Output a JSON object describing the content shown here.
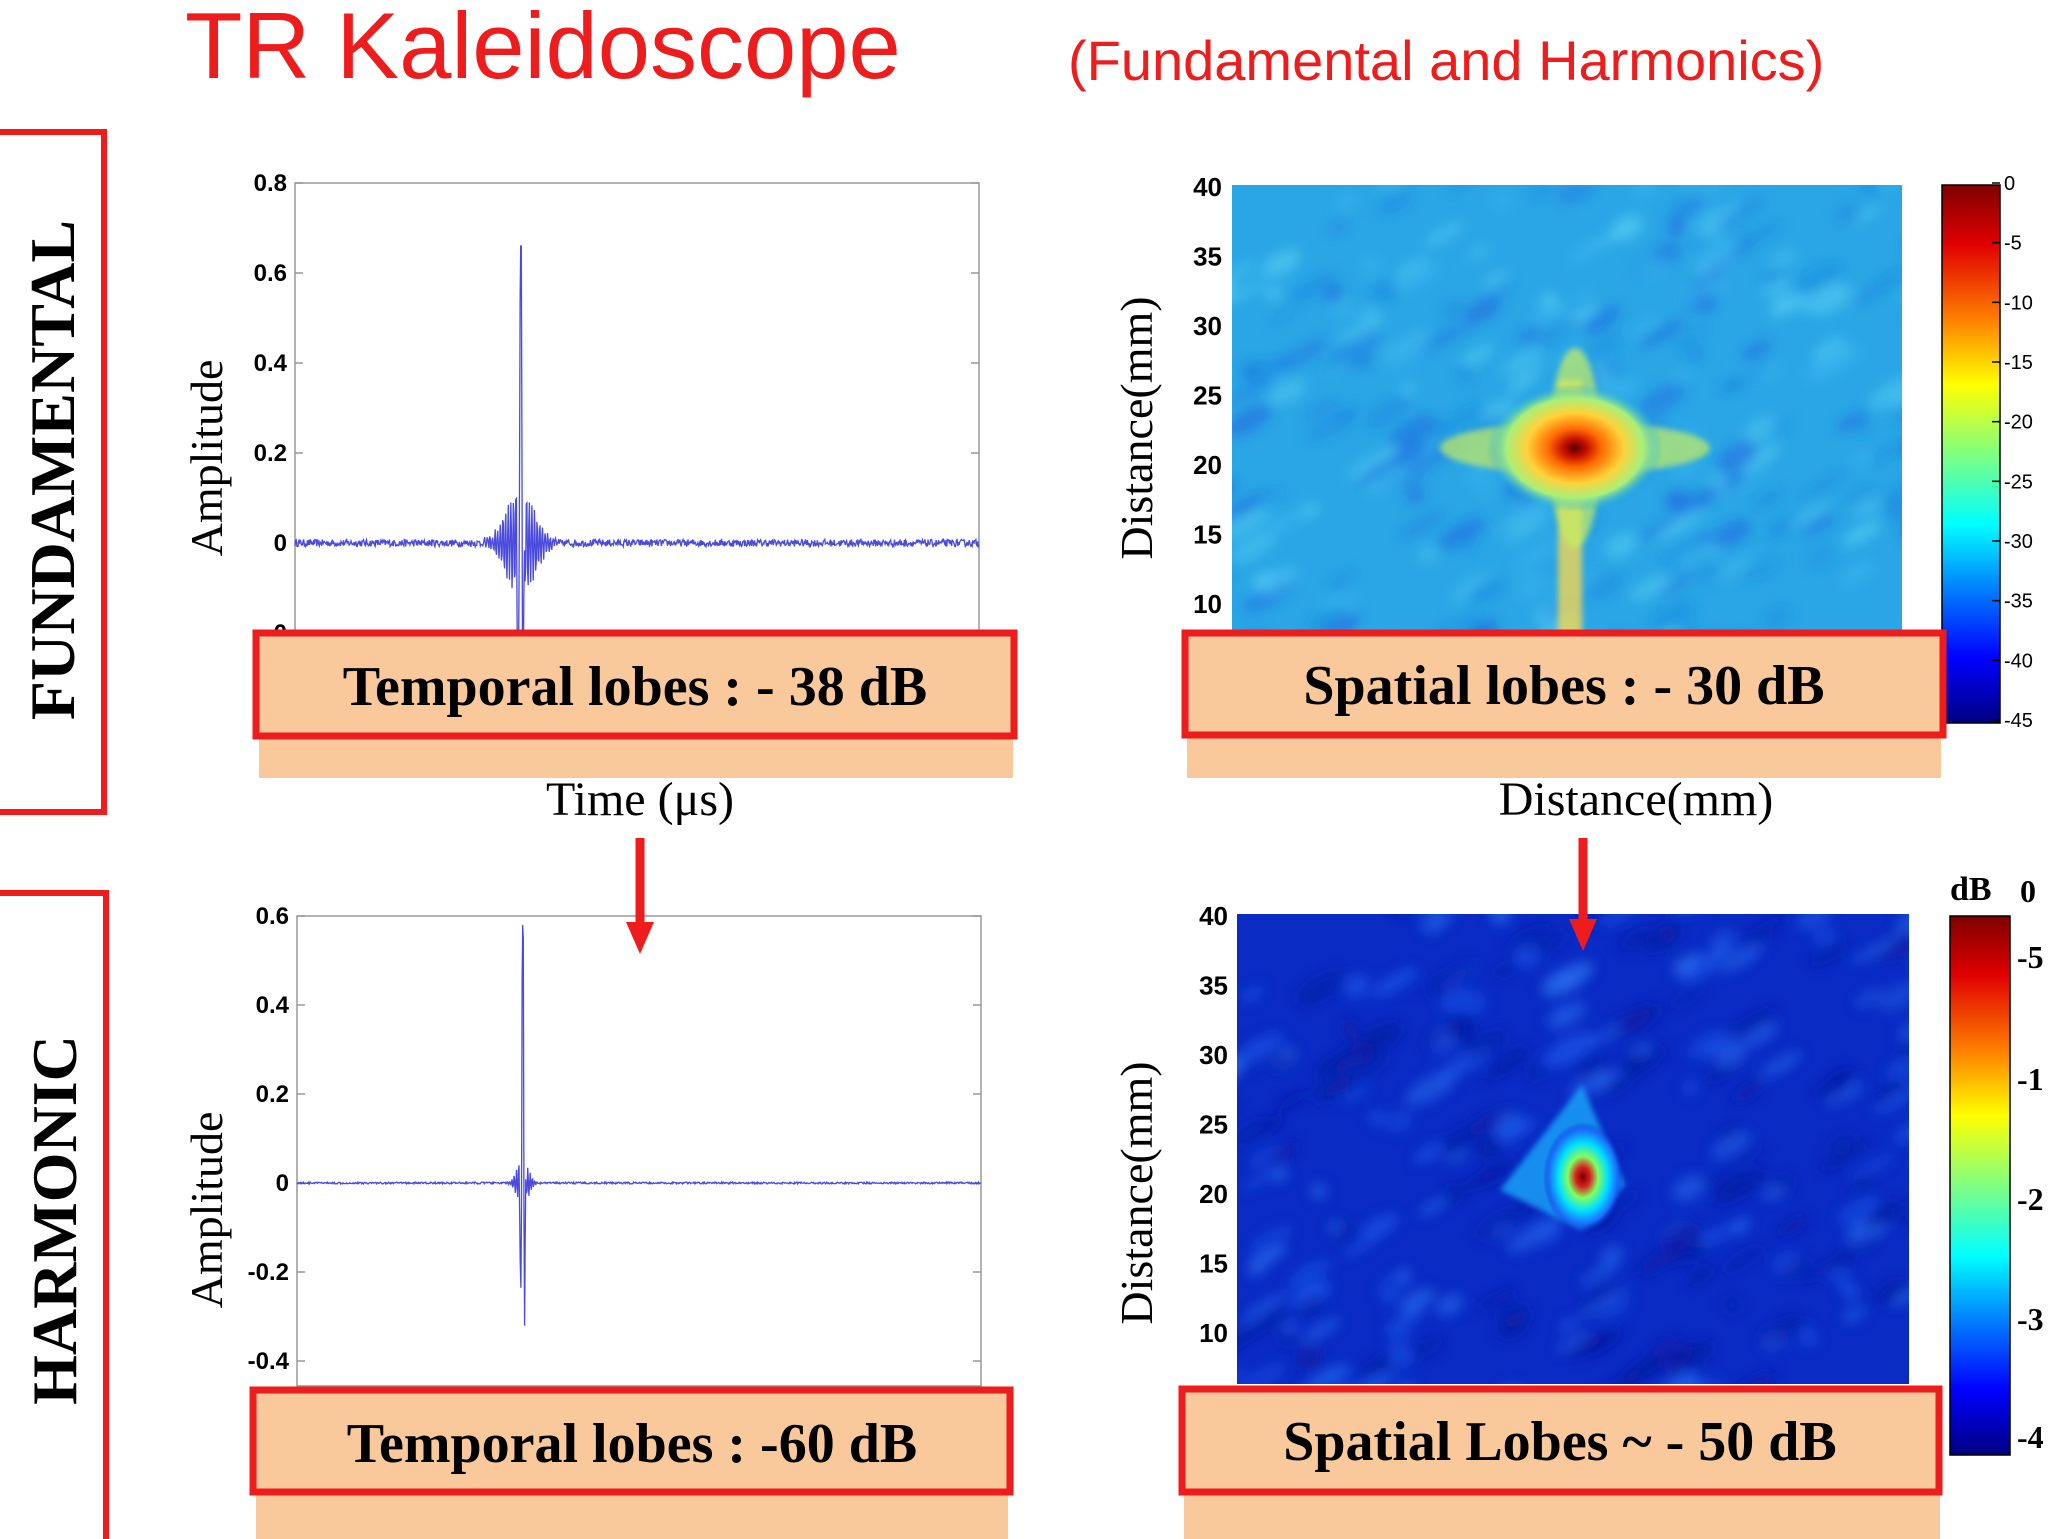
{
  "title": "TR Kaleidoscope",
  "subtitle": "(Fundamental and Harmonics)",
  "colors": {
    "accent": "#ee1c1c",
    "callout_fill": "#f9c99b",
    "trace": "#4a4adf"
  },
  "rows": [
    {
      "label": "FUNDAMENTAL"
    },
    {
      "label": "HARMONIC"
    }
  ],
  "callouts": {
    "fund_temporal": "Temporal lobes : - 38 dB",
    "fund_spatial": "Spatial lobes : - 30 dB",
    "harm_temporal": "Temporal lobes : -60 dB",
    "harm_spatial": "Spatial Lobes ~ - 50 dB"
  },
  "colorbar": {
    "fund_ticks": [
      "0",
      "-5",
      "-10",
      "-15",
      "-20",
      "-25",
      "-30",
      "-35",
      "-40",
      "-45"
    ],
    "harm_unit": "dB",
    "harm_ticks": [
      "0",
      "-5",
      "-1",
      "-2",
      "-3",
      "-4"
    ]
  },
  "chart_data": [
    {
      "type": "line",
      "name": "fundamental-temporal",
      "ylabel": "Amplitude",
      "xlabel": "Time (μs)",
      "ylim": [
        -0.2,
        0.8
      ],
      "yticks": [
        {
          "v": 0.8,
          "label": "0.8"
        },
        {
          "v": 0.6,
          "label": "0.6"
        },
        {
          "v": 0.4,
          "label": "0.4"
        },
        {
          "v": 0.2,
          "label": "0.2"
        },
        {
          "v": 0.0,
          "label": "0"
        },
        {
          "v": -0.2,
          "label": "-0"
        }
      ],
      "peak": 0.66,
      "min": -0.35,
      "noise": 0.008,
      "pulse_position": 0.33
    },
    {
      "type": "line",
      "name": "harmonic-temporal",
      "ylabel": "Amplitude",
      "xlabel": "",
      "ylim": [
        -0.4,
        0.6
      ],
      "yticks": [
        {
          "v": 0.6,
          "label": "0.6"
        },
        {
          "v": 0.4,
          "label": "0.4"
        },
        {
          "v": 0.2,
          "label": "0.2"
        },
        {
          "v": 0.0,
          "label": "0"
        },
        {
          "v": -0.2,
          "label": "-0.2"
        },
        {
          "v": -0.4,
          "label": "-0.4"
        }
      ],
      "peak": 0.58,
      "min": -0.45,
      "noise": 0.002,
      "pulse_position": 0.33
    },
    {
      "type": "heatmap",
      "name": "fundamental-spatial",
      "ylabel": "Distance(mm)",
      "xlabel": "Distance(mm)",
      "yticks": [
        "40",
        "35",
        "30",
        "25",
        "20",
        "15",
        "10"
      ],
      "focus_y_mm": 21,
      "sidelobe_db": -30,
      "colorbar_db": [
        0,
        -45
      ]
    },
    {
      "type": "heatmap",
      "name": "harmonic-spatial",
      "ylabel": "Distance(mm)",
      "xlabel": "",
      "yticks": [
        "40",
        "35",
        "30",
        "25",
        "20",
        "15",
        "10"
      ],
      "focus_y_mm": 20.5,
      "sidelobe_db": -50,
      "colorbar_db": [
        0,
        -45
      ]
    }
  ]
}
